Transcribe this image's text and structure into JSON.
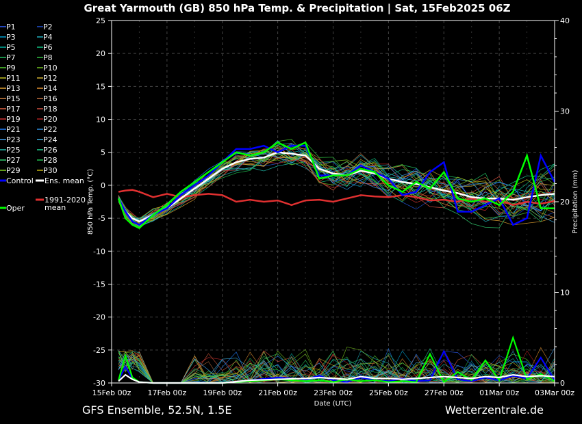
{
  "title": "Great Yarmouth  (GB)  850 hPa Temp. & Precipitation | Sat, 15Feb2025 06Z",
  "footer_left": "GFS Ensemble, 52.5N, 1.5E",
  "footer_right": "Wetterzentrale.de",
  "chart_data": {
    "type": "line",
    "xlabel": "Date (UTC)",
    "ylabel": "850 hPa Temp. (°C)",
    "y2label": "Precipitation (mm)",
    "x_ticks": [
      "15Feb 00z",
      "17Feb 00z",
      "19Feb 00z",
      "21Feb 00z",
      "23Feb 00z",
      "25Feb 00z",
      "27Feb 00z",
      "01Mar 00z",
      "03Mar 00z"
    ],
    "x_range_days": [
      0,
      16
    ],
    "ylim": [
      -30,
      25
    ],
    "y_ticks": [
      25,
      20,
      15,
      10,
      5,
      0,
      -5,
      -10,
      -15,
      -20,
      -25,
      -30
    ],
    "y2lim": [
      0,
      40
    ],
    "y2_ticks": [
      40,
      30,
      20,
      10,
      0
    ],
    "grid": true,
    "legend_placement": "left",
    "legend": {
      "members": [
        "P1",
        "P2",
        "P3",
        "P4",
        "P5",
        "P6",
        "P7",
        "P8",
        "P9",
        "P10",
        "P11",
        "P12",
        "P13",
        "P14",
        "P15",
        "P16",
        "P17",
        "P18",
        "P19",
        "P20",
        "P21",
        "P22",
        "P23",
        "P24",
        "P25",
        "P26",
        "P27",
        "P28",
        "P29",
        "P30"
      ],
      "control": "Control",
      "ens_mean": "Ens. mean",
      "clim_line1": "1991-2020",
      "clim_line2": "mean",
      "oper": "Oper"
    },
    "member_colors": [
      "#3060ff",
      "#2050d0",
      "#00a0d0",
      "#20b0c0",
      "#00b0a0",
      "#10c080",
      "#20c060",
      "#30c040",
      "#50d030",
      "#70c020",
      "#c0c020",
      "#d0b030",
      "#e0a030",
      "#e09030",
      "#d08040",
      "#c07040",
      "#e06040",
      "#d05040",
      "#d03030",
      "#b02020",
      "#2080ff",
      "#3090e0",
      "#40a0f0",
      "#40b0e0",
      "#20c0b0",
      "#20d090",
      "#30d070",
      "#20c050",
      "#80d020",
      "#c0b010"
    ],
    "series": [
      {
        "name": "Control",
        "color": "#0000ff",
        "x": [
          0.25,
          0.5,
          0.75,
          1,
          1.5,
          2,
          2.5,
          3,
          3.5,
          4,
          4.5,
          5,
          5.5,
          6,
          6.5,
          7,
          7.5,
          8,
          8.5,
          9,
          9.5,
          10,
          10.5,
          11,
          11.5,
          12,
          12.5,
          13,
          13.5,
          14,
          14.5,
          15,
          15.5,
          16
        ],
        "values": [
          -2,
          -4,
          -5.5,
          -6,
          -4.5,
          -3.5,
          -1.5,
          0,
          1.5,
          3.5,
          5.5,
          5.5,
          6,
          5,
          6,
          6,
          1.5,
          1.5,
          1.5,
          3,
          2,
          1,
          -1.5,
          -1,
          2,
          3.5,
          -4,
          -4,
          -3,
          -2,
          -6,
          -5,
          4.5,
          0.5
        ]
      },
      {
        "name": "Oper",
        "color": "#00ff00",
        "x": [
          0.25,
          0.5,
          0.75,
          1,
          1.5,
          2,
          2.5,
          3,
          3.5,
          4,
          4.5,
          5,
          5.5,
          6,
          6.5,
          7,
          7.5,
          8,
          8.5,
          9,
          9.5,
          10,
          10.5,
          11,
          11.5,
          12,
          12.5,
          13,
          13.5,
          14,
          14.5,
          15,
          15.5,
          16
        ],
        "values": [
          -2,
          -5,
          -6,
          -6.5,
          -4.5,
          -3,
          -1,
          0.5,
          2,
          3.5,
          5,
          4.5,
          5,
          6.5,
          5.5,
          6.5,
          1,
          1.5,
          1.5,
          2.5,
          2,
          0,
          -1,
          0.5,
          -0.5,
          2,
          -2,
          -2.5,
          -2,
          -3,
          -1,
          4.5,
          -3.5,
          -3.5
        ]
      },
      {
        "name": "Ens. mean",
        "color": "#ffffff",
        "x": [
          0.25,
          0.5,
          0.75,
          1,
          1.5,
          2,
          2.5,
          3,
          3.5,
          4,
          4.5,
          5,
          5.5,
          6,
          6.5,
          7,
          7.5,
          8,
          8.5,
          9,
          9.5,
          10,
          10.5,
          11,
          11.5,
          12,
          12.5,
          13,
          13.5,
          14,
          14.5,
          15,
          15.5,
          16
        ],
        "values": [
          -2,
          -4,
          -5,
          -5.5,
          -4.5,
          -3.5,
          -2,
          -0.5,
          1,
          2.5,
          3.5,
          4,
          4.2,
          5,
          4.8,
          4.5,
          2.5,
          1.8,
          1.5,
          2.2,
          1.8,
          1,
          0.5,
          0.2,
          -0.3,
          -0.8,
          -1.2,
          -1.8,
          -2,
          -2,
          -2.2,
          -1.8,
          -1.5,
          -1.3
        ]
      },
      {
        "name": "1991-2020 mean",
        "color": "#e03030",
        "x": [
          0.25,
          0.5,
          0.75,
          1,
          1.5,
          2,
          2.5,
          3,
          3.5,
          4,
          4.5,
          5,
          5.5,
          6,
          6.5,
          7,
          7.5,
          8,
          8.5,
          9,
          9.5,
          10,
          10.5,
          11,
          11.5,
          12,
          12.5,
          13,
          13.5,
          14,
          14.5,
          15,
          15.5,
          16
        ],
        "values": [
          -1,
          -0.8,
          -0.7,
          -1,
          -1.8,
          -1.3,
          -1.8,
          -1.5,
          -1.3,
          -1.5,
          -2.5,
          -2.2,
          -2.5,
          -2.3,
          -3,
          -2.3,
          -2.2,
          -2.5,
          -2,
          -1.5,
          -1.7,
          -1.8,
          -1.5,
          -1.8,
          -2.3,
          -2.2,
          -2.5,
          -2,
          -2.5,
          -2.2,
          -3,
          -2.5,
          -2.8,
          -2.4
        ]
      }
    ],
    "precipitation": [
      {
        "name": "Control",
        "color": "#0000ff",
        "x": [
          0.25,
          0.5,
          0.75,
          1,
          1.5,
          2,
          3,
          4,
          5,
          6,
          7,
          7.5,
          8,
          8.5,
          9,
          9.5,
          10,
          10.5,
          11,
          11.5,
          12,
          12.5,
          13,
          13.5,
          14,
          14.5,
          15,
          15.5,
          16
        ],
        "values": [
          0.3,
          1.8,
          0.5,
          0.1,
          0,
          0,
          0,
          0,
          0.3,
          0.6,
          0.4,
          0.8,
          0.3,
          0.1,
          0.6,
          0.3,
          0.2,
          0.5,
          0.2,
          0.3,
          3.5,
          0.4,
          0.2,
          0.6,
          0.3,
          0.8,
          0.5,
          2.8,
          0.3
        ]
      },
      {
        "name": "Oper",
        "color": "#00ff00",
        "x": [
          0.25,
          0.5,
          0.75,
          1,
          1.5,
          2,
          3,
          4,
          5,
          6,
          7,
          7.5,
          8,
          8.5,
          9,
          9.5,
          10,
          10.5,
          11,
          11.5,
          12,
          12.5,
          13,
          13.5,
          14,
          14.5,
          15,
          15.5,
          16
        ],
        "values": [
          0.3,
          3,
          0.6,
          0.1,
          0,
          0,
          0,
          0,
          0.2,
          0.4,
          0.2,
          0.3,
          0.1,
          0.4,
          0.2,
          0.3,
          0.1,
          0.2,
          0.1,
          3.2,
          0.1,
          1.2,
          0.3,
          2.5,
          0.3,
          5,
          0.4,
          1,
          0.2
        ]
      },
      {
        "name": "Ens. mean",
        "color": "#ffffff",
        "x": [
          0.25,
          0.5,
          0.75,
          1,
          1.5,
          2,
          3,
          4,
          5,
          6,
          7,
          7.5,
          8,
          8.5,
          9,
          9.5,
          10,
          10.5,
          11,
          11.5,
          12,
          12.5,
          13,
          13.5,
          14,
          14.5,
          15,
          15.5,
          16
        ],
        "values": [
          0.2,
          0.9,
          0.4,
          0.1,
          0,
          0,
          0,
          0,
          0.3,
          0.4,
          0.5,
          0.6,
          0.5,
          0.4,
          0.7,
          0.5,
          0.5,
          0.4,
          0.5,
          0.6,
          0.7,
          0.6,
          0.5,
          0.7,
          0.6,
          0.9,
          0.7,
          0.8,
          0.7
        ]
      }
    ]
  }
}
